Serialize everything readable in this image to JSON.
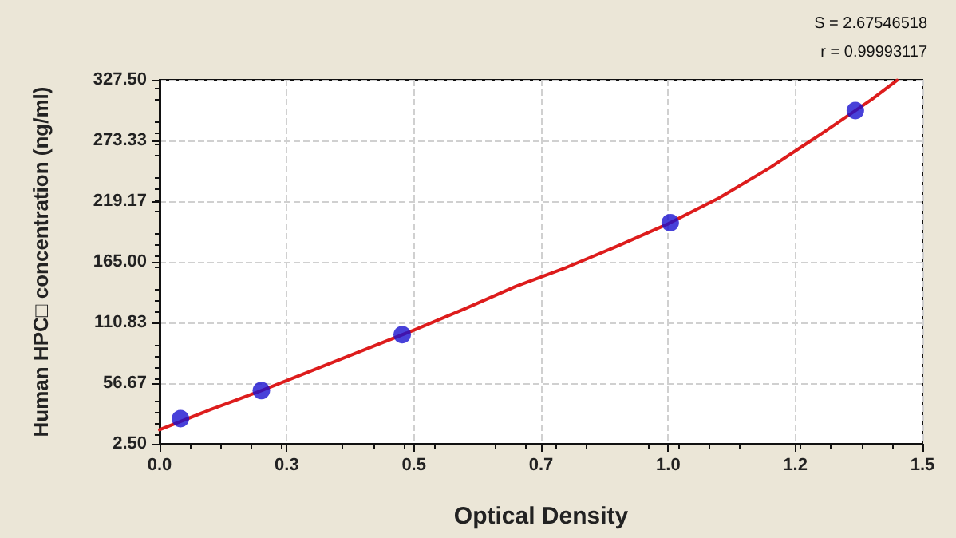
{
  "chart_data": {
    "type": "scatter",
    "xlabel": "Optical Density",
    "ylabel": "Human HPC□ concentration (ng/ml)",
    "annotations": [
      "S = 2.67546518",
      "r = 0.99993117"
    ],
    "xlim": [
      0,
      1.5
    ],
    "ylim": [
      2.5,
      327.5
    ],
    "xticks": [
      {
        "value": 0,
        "label": "0.0"
      },
      {
        "value": 0.25,
        "label": "0.3"
      },
      {
        "value": 0.5,
        "label": "0.5"
      },
      {
        "value": 0.75,
        "label": "0.7"
      },
      {
        "value": 1,
        "label": "1.0"
      },
      {
        "value": 1.25,
        "label": "1.2"
      },
      {
        "value": 1.5,
        "label": "1.5"
      }
    ],
    "yticks": [
      {
        "value": 2.5,
        "label": "2.50"
      },
      {
        "value": 56.67,
        "label": "56.67"
      },
      {
        "value": 110.83,
        "label": "110.83"
      },
      {
        "value": 165,
        "label": "165.00"
      },
      {
        "value": 219.17,
        "label": "219.17"
      },
      {
        "value": 273.33,
        "label": "273.33"
      },
      {
        "value": 327.5,
        "label": "327.50"
      }
    ],
    "grid": true,
    "marker": "circle",
    "series": [
      {
        "color": "#1a12d0",
        "x": [
          0.041,
          0.2,
          0.477,
          1.004,
          1.368
        ],
        "values": [
          25,
          50,
          100,
          200,
          300
        ]
      },
      {
        "type": "line",
        "color": "#dd1c1c",
        "marker": "none",
        "line_style": "solid",
        "x": [
          0,
          0.1,
          0.2,
          0.3,
          0.4,
          0.5,
          0.6,
          0.7,
          0.8,
          0.9,
          1.0,
          1.1,
          1.2,
          1.3,
          1.4,
          1.45
        ],
        "values": [
          15,
          33,
          50,
          68,
          86,
          104,
          123,
          143,
          160,
          179,
          199,
          222,
          249,
          279,
          310,
          327
        ]
      }
    ]
  }
}
